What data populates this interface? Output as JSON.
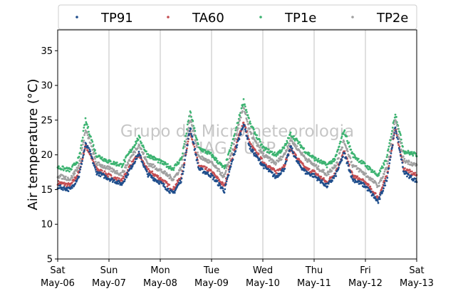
{
  "chart_data": {
    "type": "scatter",
    "ylabel": "Air temperature (°C)",
    "xlabel": "",
    "ylim": [
      5,
      38
    ],
    "yticks": [
      5,
      10,
      15,
      20,
      25,
      30,
      35
    ],
    "xlim": [
      "2017-05-06",
      "2017-05-13"
    ],
    "xticks": [
      {
        "day": "Sat",
        "date": "May-06"
      },
      {
        "day": "Sun",
        "date": "May-07"
      },
      {
        "day": "Mon",
        "date": "May-08"
      },
      {
        "day": "Tue",
        "date": "May-09"
      },
      {
        "day": "Wed",
        "date": "May-10"
      },
      {
        "day": "Thu",
        "date": "May-11"
      },
      {
        "day": "Fri",
        "date": "May-12"
      },
      {
        "day": "Sat",
        "date": "May-13"
      }
    ],
    "grid": {
      "x": true,
      "y": false
    },
    "legend_position": "top",
    "watermark": [
      "Grupo de Micrometeorologia",
      "IAG - USP"
    ],
    "series": [
      {
        "name": "TA60",
        "color": "#c44e52",
        "x": [
          "2017-05-06 00:00",
          "2017-05-06 06:00",
          "2017-05-06 10:00",
          "2017-05-06 13:00",
          "2017-05-06 15:00",
          "2017-05-06 18:00",
          "2017-05-07 00:00",
          "2017-05-07 06:00",
          "2017-05-07 10:00",
          "2017-05-07 14:00",
          "2017-05-07 18:00",
          "2017-05-08 00:00",
          "2017-05-08 06:00",
          "2017-05-08 10:00",
          "2017-05-08 14:00",
          "2017-05-08 18:00",
          "2017-05-09 00:00",
          "2017-05-09 06:00",
          "2017-05-09 10:00",
          "2017-05-09 15:00",
          "2017-05-09 18:00",
          "2017-05-10 00:00",
          "2017-05-10 06:00",
          "2017-05-10 10:00",
          "2017-05-10 13:00",
          "2017-05-10 16:00",
          "2017-05-10 20:00",
          "2017-05-11 00:00",
          "2017-05-11 06:00",
          "2017-05-11 10:00",
          "2017-05-11 14:00",
          "2017-05-11 18:00",
          "2017-05-12 00:00",
          "2017-05-12 06:00",
          "2017-05-12 10:00",
          "2017-05-12 14:00",
          "2017-05-12 18:00",
          "2017-05-13 00:00"
        ],
        "values": [
          16.0,
          15.6,
          17.5,
          21.3,
          20.2,
          18.0,
          17.0,
          16.2,
          18.5,
          20.0,
          17.8,
          16.6,
          15.0,
          17.0,
          23.5,
          18.5,
          17.5,
          15.5,
          20.0,
          24.8,
          21.5,
          19.0,
          17.5,
          18.5,
          21.0,
          19.5,
          18.0,
          17.5,
          16.0,
          17.5,
          20.5,
          17.0,
          16.0,
          13.8,
          17.0,
          23.8,
          18.0,
          17.0
        ]
      },
      {
        "name": "TP91",
        "color": "#1f4e8c",
        "x": [
          "2017-05-06 00:00",
          "2017-05-06 06:00",
          "2017-05-06 10:00",
          "2017-05-06 13:00",
          "2017-05-06 15:00",
          "2017-05-06 18:00",
          "2017-05-07 00:00",
          "2017-05-07 06:00",
          "2017-05-07 10:00",
          "2017-05-07 14:00",
          "2017-05-07 18:00",
          "2017-05-08 00:00",
          "2017-05-08 06:00",
          "2017-05-08 10:00",
          "2017-05-08 14:00",
          "2017-05-08 18:00",
          "2017-05-09 00:00",
          "2017-05-09 06:00",
          "2017-05-09 10:00",
          "2017-05-09 15:00",
          "2017-05-09 18:00",
          "2017-05-10 00:00",
          "2017-05-10 06:00",
          "2017-05-10 10:00",
          "2017-05-10 13:00",
          "2017-05-10 16:00",
          "2017-05-10 20:00",
          "2017-05-11 00:00",
          "2017-05-11 06:00",
          "2017-05-11 10:00",
          "2017-05-11 14:00",
          "2017-05-11 18:00",
          "2017-05-12 00:00",
          "2017-05-12 06:00",
          "2017-05-12 10:00",
          "2017-05-12 14:00",
          "2017-05-12 18:00",
          "2017-05-13 00:00"
        ],
        "values": [
          15.4,
          15.0,
          17.0,
          21.5,
          20.5,
          17.5,
          16.6,
          15.8,
          18.0,
          20.2,
          17.2,
          16.0,
          14.4,
          16.5,
          24.0,
          18.0,
          17.0,
          14.8,
          19.5,
          24.5,
          21.0,
          18.5,
          16.8,
          18.0,
          21.2,
          19.0,
          17.5,
          17.0,
          15.5,
          17.0,
          20.2,
          16.5,
          15.5,
          13.2,
          16.5,
          24.0,
          17.5,
          16.2
        ]
      },
      {
        "name": "TP1e",
        "color": "#3cb371",
        "x": [
          "2017-05-06 00:00",
          "2017-05-06 06:00",
          "2017-05-06 10:00",
          "2017-05-06 13:00",
          "2017-05-06 15:00",
          "2017-05-06 18:00",
          "2017-05-07 00:00",
          "2017-05-07 06:00",
          "2017-05-07 10:00",
          "2017-05-07 14:00",
          "2017-05-07 18:00",
          "2017-05-08 00:00",
          "2017-05-08 06:00",
          "2017-05-08 10:00",
          "2017-05-08 14:00",
          "2017-05-08 18:00",
          "2017-05-09 00:00",
          "2017-05-09 06:00",
          "2017-05-09 10:00",
          "2017-05-09 15:00",
          "2017-05-09 18:00",
          "2017-05-10 00:00",
          "2017-05-10 06:00",
          "2017-05-10 10:00",
          "2017-05-10 13:00",
          "2017-05-10 16:00",
          "2017-05-10 20:00",
          "2017-05-11 00:00",
          "2017-05-11 06:00",
          "2017-05-11 10:00",
          "2017-05-11 14:00",
          "2017-05-11 18:00",
          "2017-05-12 00:00",
          "2017-05-12 06:00",
          "2017-05-12 10:00",
          "2017-05-12 14:00",
          "2017-05-12 18:00",
          "2017-05-13 00:00"
        ],
        "values": [
          18.2,
          17.8,
          19.5,
          25.0,
          23.0,
          20.0,
          19.0,
          18.5,
          20.5,
          22.5,
          20.0,
          19.0,
          18.0,
          19.5,
          26.2,
          21.0,
          20.0,
          18.0,
          22.0,
          27.8,
          24.5,
          21.0,
          20.0,
          21.0,
          23.0,
          22.0,
          20.5,
          19.5,
          18.5,
          19.5,
          23.5,
          20.0,
          18.5,
          17.0,
          19.5,
          26.0,
          20.5,
          20.0
        ]
      },
      {
        "name": "TP2e",
        "color": "#a0a0a0",
        "x": [
          "2017-05-06 00:00",
          "2017-05-06 06:00",
          "2017-05-06 10:00",
          "2017-05-06 13:00",
          "2017-05-06 15:00",
          "2017-05-06 18:00",
          "2017-05-07 00:00",
          "2017-05-07 06:00",
          "2017-05-07 10:00",
          "2017-05-07 14:00",
          "2017-05-07 18:00",
          "2017-05-08 00:00",
          "2017-05-08 06:00",
          "2017-05-08 10:00",
          "2017-05-08 14:00",
          "2017-05-08 18:00",
          "2017-05-09 00:00",
          "2017-05-09 06:00",
          "2017-05-09 10:00",
          "2017-05-09 15:00",
          "2017-05-09 18:00",
          "2017-05-10 00:00",
          "2017-05-10 06:00",
          "2017-05-10 10:00",
          "2017-05-10 13:00",
          "2017-05-10 16:00",
          "2017-05-10 20:00",
          "2017-05-11 00:00",
          "2017-05-11 06:00",
          "2017-05-11 10:00",
          "2017-05-11 14:00",
          "2017-05-11 18:00",
          "2017-05-12 00:00",
          "2017-05-12 06:00",
          "2017-05-12 10:00",
          "2017-05-12 14:00",
          "2017-05-12 18:00",
          "2017-05-13 00:00"
        ],
        "values": [
          17.0,
          16.5,
          18.5,
          23.5,
          22.0,
          18.8,
          18.0,
          17.2,
          19.5,
          21.5,
          18.8,
          17.8,
          16.5,
          18.2,
          25.5,
          19.8,
          18.8,
          16.8,
          21.0,
          27.0,
          23.2,
          20.0,
          18.8,
          20.0,
          22.2,
          21.0,
          19.5,
          18.5,
          17.2,
          18.5,
          22.0,
          18.5,
          17.2,
          15.5,
          18.2,
          25.0,
          19.2,
          18.5
        ]
      }
    ],
    "legend": [
      "TP91",
      "TA60",
      "TP1e",
      "TP2e"
    ]
  }
}
